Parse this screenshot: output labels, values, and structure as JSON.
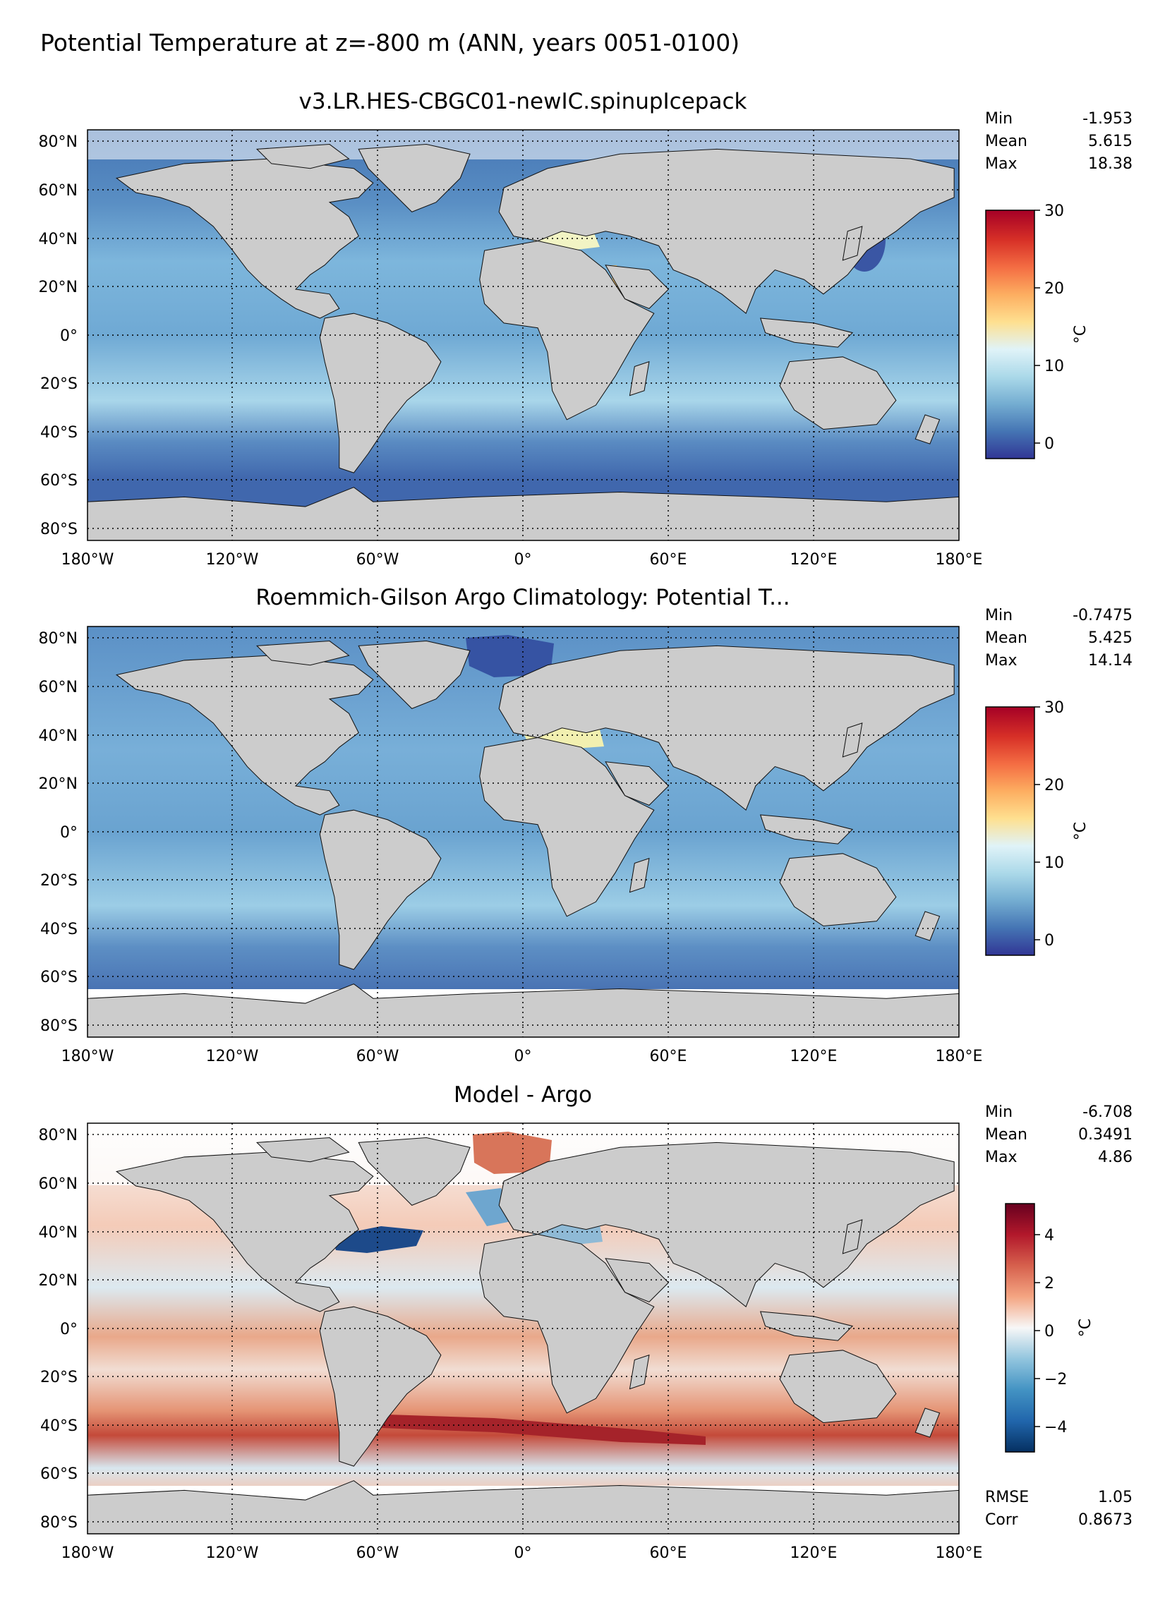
{
  "figure_title": "Potential Temperature at z=-800 m (ANN, years 0051-0100)",
  "chart_data": [
    {
      "type": "heatmap",
      "title": "v3.LR.HES-CBGC01-newIC.spinupIcepack",
      "projection": "plate-carree",
      "xlim": [
        -180,
        180
      ],
      "ylim": [
        -85,
        85
      ],
      "x_ticks": [
        "180°W",
        "120°W",
        "60°W",
        "0°",
        "60°E",
        "120°E",
        "180°E"
      ],
      "y_ticks": [
        "80°N",
        "60°N",
        "40°N",
        "20°N",
        "0°",
        "20°S",
        "40°S",
        "60°S",
        "80°S"
      ],
      "stats": [
        {
          "label": "Min",
          "value": "-1.953"
        },
        {
          "label": "Mean",
          "value": "5.615"
        },
        {
          "label": "Max",
          "value": "18.38"
        }
      ],
      "colorbar": {
        "label": "°C",
        "range": [
          -2,
          30
        ],
        "ticks": [
          "0",
          "10",
          "20",
          "30"
        ],
        "colormap": [
          "#313695",
          "#4575b4",
          "#74add1",
          "#abd9e9",
          "#e0f3f8",
          "#fee090",
          "#fdae61",
          "#f46d43",
          "#d73027",
          "#a50026"
        ]
      },
      "land_color": "#cccccc",
      "nodata_color": "#ffffff"
    },
    {
      "type": "heatmap",
      "title": "Roemmich-Gilson Argo Climatology: Potential T...",
      "projection": "plate-carree",
      "xlim": [
        -180,
        180
      ],
      "ylim": [
        -85,
        85
      ],
      "x_ticks": [
        "180°W",
        "120°W",
        "60°W",
        "0°",
        "60°E",
        "120°E",
        "180°E"
      ],
      "y_ticks": [
        "80°N",
        "60°N",
        "40°N",
        "20°N",
        "0°",
        "20°S",
        "40°S",
        "60°S",
        "80°S"
      ],
      "stats": [
        {
          "label": "Min",
          "value": "-0.7475"
        },
        {
          "label": "Mean",
          "value": "5.425"
        },
        {
          "label": "Max",
          "value": "14.14"
        }
      ],
      "colorbar": {
        "label": "°C",
        "range": [
          -2,
          30
        ],
        "ticks": [
          "0",
          "10",
          "20",
          "30"
        ],
        "colormap": [
          "#313695",
          "#4575b4",
          "#74add1",
          "#abd9e9",
          "#e0f3f8",
          "#fee090",
          "#fdae61",
          "#f46d43",
          "#d73027",
          "#a50026"
        ]
      },
      "land_color": "#cccccc",
      "nodata_color": "#ffffff"
    },
    {
      "type": "heatmap",
      "title": "Model - Argo",
      "projection": "plate-carree",
      "xlim": [
        -180,
        180
      ],
      "ylim": [
        -85,
        85
      ],
      "x_ticks": [
        "180°W",
        "120°W",
        "60°W",
        "0°",
        "60°E",
        "120°E",
        "180°E"
      ],
      "y_ticks": [
        "80°N",
        "60°N",
        "40°N",
        "20°N",
        "0°",
        "20°S",
        "40°S",
        "60°S",
        "80°S"
      ],
      "stats": [
        {
          "label": "Min",
          "value": "-6.708"
        },
        {
          "label": "Mean",
          "value": "0.3491"
        },
        {
          "label": "Max",
          "value": "4.86"
        }
      ],
      "extra_stats": [
        {
          "label": "RMSE",
          "value": "1.05"
        },
        {
          "label": "Corr",
          "value": "0.8673"
        }
      ],
      "colorbar": {
        "label": "°C",
        "range": [
          -5,
          5
        ],
        "ticks": [
          "4",
          "2",
          "0",
          "−2",
          "−4"
        ],
        "colormap": [
          "#053061",
          "#2166ac",
          "#4393c3",
          "#92c5de",
          "#f7f7f7",
          "#f4a582",
          "#d6604d",
          "#b2182b",
          "#67001f"
        ]
      },
      "land_color": "#cccccc",
      "nodata_color": "#ffffff"
    }
  ]
}
